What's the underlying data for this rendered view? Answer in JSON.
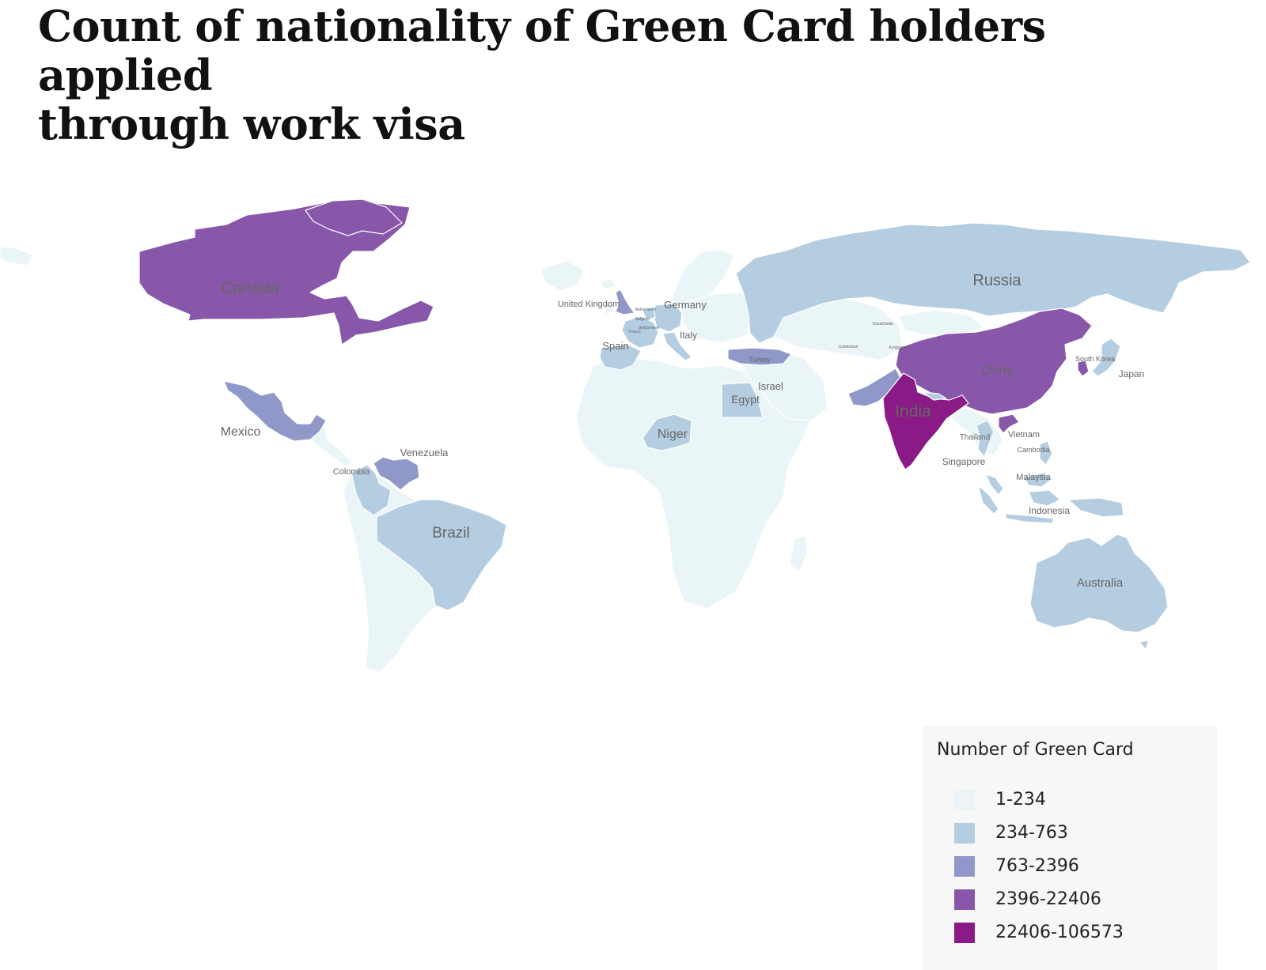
{
  "title": "Count of nationality of Green Card holders applied\nthrough  work visa",
  "colors": {
    "ocean": "#ffffff",
    "borders": "#ffffff"
  },
  "legend": {
    "title": "Number of Green Card",
    "bins": [
      {
        "label": "1-234",
        "color": "#eaf5f7"
      },
      {
        "label": "234-763",
        "color": "#b4cde1"
      },
      {
        "label": "763-2396",
        "color": "#8f98c8"
      },
      {
        "label": "2396-22406",
        "color": "#8857a9"
      },
      {
        "label": "22406-106573",
        "color": "#8a1a86"
      }
    ]
  },
  "countries": [
    {
      "name": "Canada",
      "bin": "2396-22406",
      "color": "#8857a9"
    },
    {
      "name": "Mexico",
      "bin": "763-2396",
      "color": "#8f98c8"
    },
    {
      "name": "Venezuela",
      "bin": "763-2396",
      "color": "#8f98c8"
    },
    {
      "name": "Colombia",
      "bin": "234-763",
      "color": "#b4cde1"
    },
    {
      "name": "Brazil",
      "bin": "234-763",
      "color": "#b4cde1"
    },
    {
      "name": "United Kingdom",
      "bin": "763-2396",
      "color": "#8f98c8"
    },
    {
      "name": "Netherlands",
      "bin": "234-763",
      "color": "#b4cde1"
    },
    {
      "name": "Belgium",
      "bin": "234-763",
      "color": "#b4cde1"
    },
    {
      "name": "Switzerland",
      "bin": "234-763",
      "color": "#b4cde1"
    },
    {
      "name": "France",
      "bin": "234-763",
      "color": "#b4cde1"
    },
    {
      "name": "Germany",
      "bin": "234-763",
      "color": "#b4cde1"
    },
    {
      "name": "Spain",
      "bin": "234-763",
      "color": "#b4cde1"
    },
    {
      "name": "Italy",
      "bin": "234-763",
      "color": "#b4cde1"
    },
    {
      "name": "Turkey",
      "bin": "763-2396",
      "color": "#8f98c8"
    },
    {
      "name": "Israel",
      "bin": "234-763",
      "color": "#b4cde1"
    },
    {
      "name": "Egypt",
      "bin": "234-763",
      "color": "#b4cde1"
    },
    {
      "name": "Niger",
      "bin": "234-763",
      "color": "#b4cde1"
    },
    {
      "name": "Russia",
      "bin": "234-763",
      "color": "#b4cde1"
    },
    {
      "name": "Kazakhstan",
      "bin": "1-234",
      "color": "#eaf5f7"
    },
    {
      "name": "Uzbekistan",
      "bin": "1-234",
      "color": "#eaf5f7"
    },
    {
      "name": "Kyrgyzstan",
      "bin": "1-234",
      "color": "#eaf5f7"
    },
    {
      "name": "Pakistan",
      "bin": "763-2396",
      "color": "#8f98c8"
    },
    {
      "name": "India",
      "bin": "22406-106573",
      "color": "#8a1a86"
    },
    {
      "name": "Bangladesh",
      "bin": "234-763",
      "color": "#b4cde1"
    },
    {
      "name": "Nepal",
      "bin": "234-763",
      "color": "#b4cde1"
    },
    {
      "name": "China",
      "bin": "2396-22406",
      "color": "#8857a9"
    },
    {
      "name": "South Korea",
      "bin": "2396-22406",
      "color": "#8857a9"
    },
    {
      "name": "Japan",
      "bin": "234-763",
      "color": "#b4cde1"
    },
    {
      "name": "Thailand",
      "bin": "234-763",
      "color": "#b4cde1"
    },
    {
      "name": "Vietnam",
      "bin": "2396-22406",
      "color": "#8857a9"
    },
    {
      "name": "Cambodia",
      "bin": "1-234",
      "color": "#eaf5f7"
    },
    {
      "name": "Singapore",
      "bin": "234-763",
      "color": "#b4cde1"
    },
    {
      "name": "Malaysia",
      "bin": "234-763",
      "color": "#b4cde1"
    },
    {
      "name": "Indonesia",
      "bin": "234-763",
      "color": "#b4cde1"
    },
    {
      "name": "Philippines",
      "bin": "234-763",
      "color": "#b4cde1"
    },
    {
      "name": "Australia",
      "bin": "234-763",
      "color": "#b4cde1"
    }
  ],
  "labels": {
    "canada": "Canada",
    "mexico": "Mexico",
    "venezuela": "Venezuela",
    "colombia": "Colombia",
    "brazil": "Brazil",
    "uk": "United Kingdom",
    "netherlands": "Netherlands",
    "belgium": "Belgium",
    "switzerland": "Switzerland",
    "france": "France",
    "germany": "Germany",
    "spain": "Spain",
    "italy": "Italy",
    "turkey": "Turkey",
    "israel": "Israel",
    "egypt": "Egypt",
    "niger": "Niger",
    "russia": "Russia",
    "kazakhstan": "Kazakhstan",
    "uzbekistan": "Uzbekistan",
    "kyrgyzstan": "Kyrgyzstan",
    "india": "India",
    "china": "China",
    "south_korea": "South Korea",
    "japan": "Japan",
    "thailand": "Thailand",
    "vietnam": "Vietnam",
    "cambodia": "Cambodia",
    "singapore": "Singapore",
    "malaysia": "Malaysia",
    "indonesia": "Indonesia",
    "australia": "Australia"
  }
}
